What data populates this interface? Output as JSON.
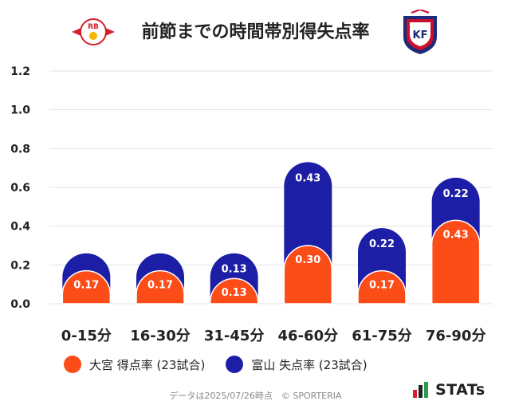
{
  "title": "前節までの時間帯別得失点率",
  "logos": {
    "left_badge_text": "RB",
    "right_badge_text": "KF"
  },
  "colors": {
    "home": "#fc4c17",
    "away": "#1c1fa6",
    "grid": "#e3e3e3"
  },
  "chart_data": {
    "type": "bar",
    "categories": [
      "0-15分",
      "16-30分",
      "31-45分",
      "46-60分",
      "61-75分",
      "76-90分"
    ],
    "series": [
      {
        "name": "大宮 得点率 (23試合)",
        "values": [
          0.17,
          0.17,
          0.13,
          0.3,
          0.17,
          0.43
        ]
      },
      {
        "name": "富山 失点率 (23試合)",
        "values": [
          0.09,
          0.09,
          0.13,
          0.43,
          0.22,
          0.22
        ]
      }
    ],
    "bar_labels": [
      [
        "0.17",
        "0.17",
        "0.13",
        "0.30",
        "0.17",
        "0.43"
      ],
      [
        "",
        "",
        "0.13",
        "0.43",
        "0.22",
        "0.22"
      ]
    ],
    "yticks": [
      "0.0",
      "0.2",
      "0.4",
      "0.6",
      "0.8",
      "1.0",
      "1.2"
    ],
    "ylim": [
      0,
      1.2
    ],
    "grid": true,
    "legend_position": "bottom"
  },
  "legend": [
    {
      "label": "大宮 得点率 (23試合)",
      "color": "#fc4c17"
    },
    {
      "label": "富山 失点率 (23試合)",
      "color": "#1c1fa6"
    }
  ],
  "footer": "データは2025/07/26時点　© SPORTERIA",
  "brand": "STATs"
}
